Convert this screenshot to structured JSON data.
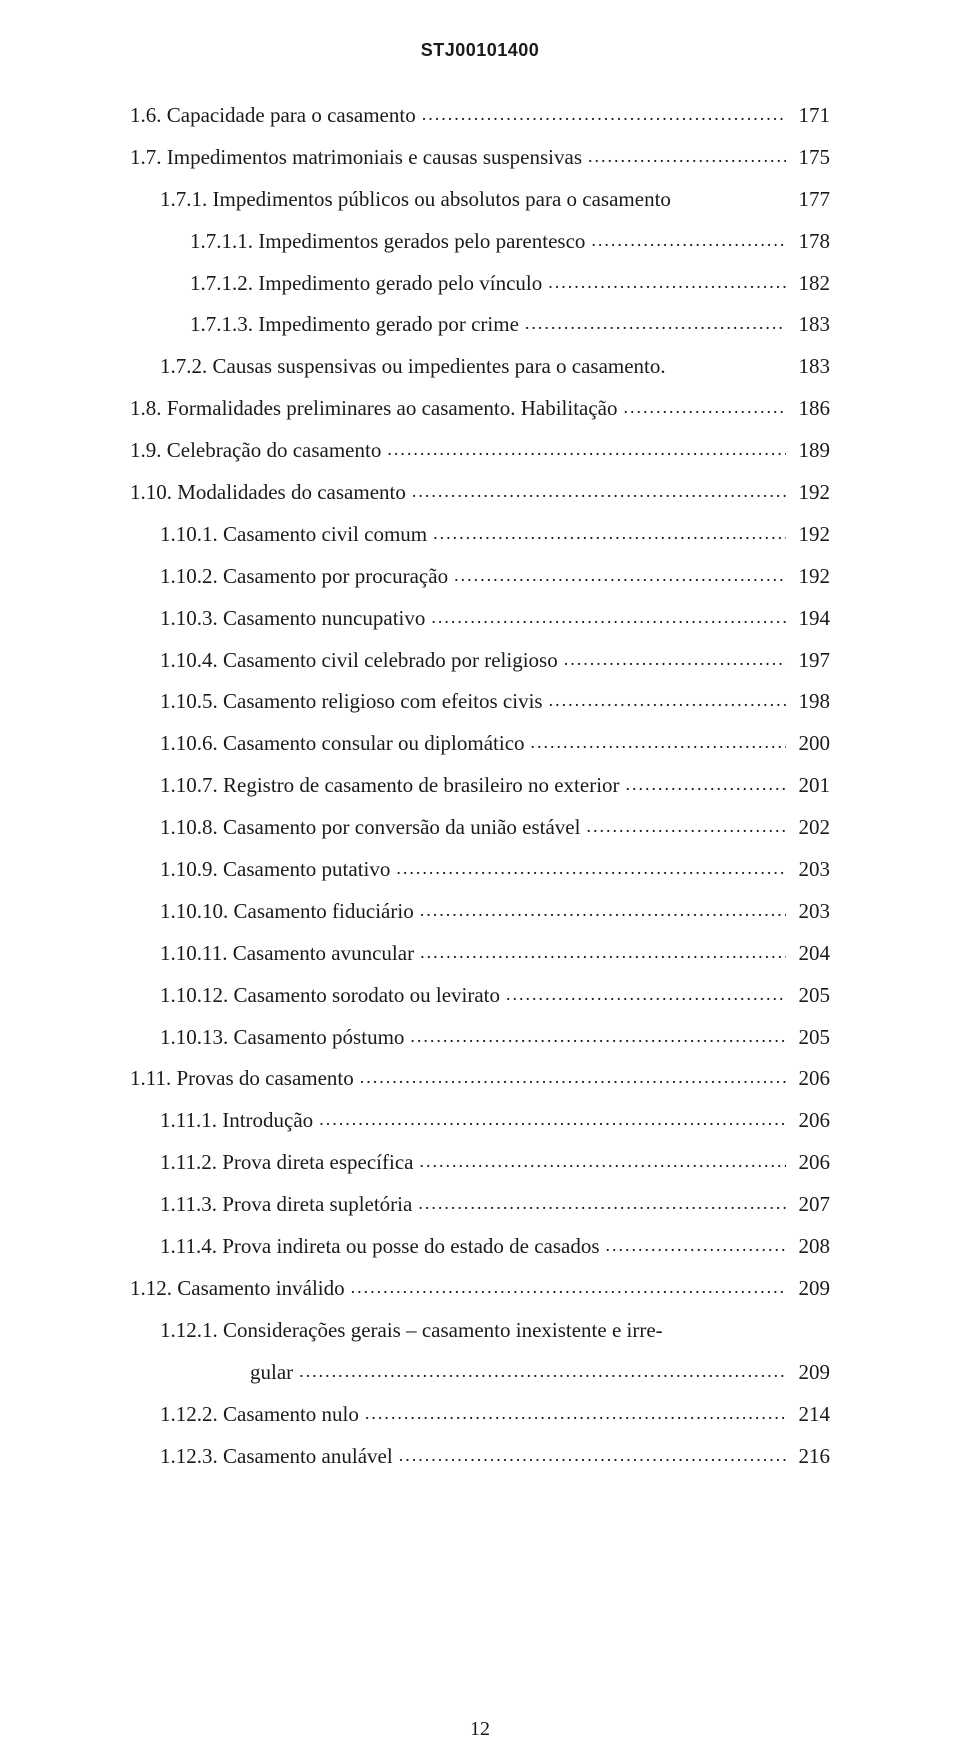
{
  "header_code": "STJ00101400",
  "footer_page": "12",
  "leader_dots": "........................................................................................................................",
  "toc": [
    {
      "indent": 0,
      "label": "1.6. Capacidade para o casamento",
      "page": "171",
      "leader": true
    },
    {
      "indent": 0,
      "label": "1.7. Impedimentos matrimoniais e causas suspensivas",
      "page": "175",
      "leader": true
    },
    {
      "indent": 1,
      "label": "1.7.1. Impedimentos públicos ou absolutos para o casamento",
      "page": "177",
      "leader": false
    },
    {
      "indent": 2,
      "label": "1.7.1.1. Impedimentos gerados pelo parentesco",
      "page": "178",
      "leader": true
    },
    {
      "indent": 2,
      "label": "1.7.1.2. Impedimento gerado pelo vínculo",
      "page": "182",
      "leader": true
    },
    {
      "indent": 2,
      "label": "1.7.1.3. Impedimento gerado por crime",
      "page": "183",
      "leader": true
    },
    {
      "indent": 1,
      "label": "1.7.2. Causas suspensivas ou impedientes para o casamento.",
      "page": "183",
      "leader": false
    },
    {
      "indent": 0,
      "label": "1.8. Formalidades preliminares ao casamento. Habilitação",
      "page": "186",
      "leader": true
    },
    {
      "indent": 0,
      "label": "1.9. Celebração do casamento",
      "page": "189",
      "leader": true
    },
    {
      "indent": 0,
      "label": "1.10. Modalidades do casamento",
      "page": "192",
      "leader": true
    },
    {
      "indent": 1,
      "label": "1.10.1. Casamento civil comum",
      "page": "192",
      "leader": true
    },
    {
      "indent": 1,
      "label": "1.10.2. Casamento por procuração",
      "page": "192",
      "leader": true
    },
    {
      "indent": 1,
      "label": "1.10.3. Casamento nuncupativo",
      "page": "194",
      "leader": true
    },
    {
      "indent": 1,
      "label": "1.10.4. Casamento civil celebrado por religioso",
      "page": "197",
      "leader": true
    },
    {
      "indent": 1,
      "label": "1.10.5. Casamento religioso com efeitos civis",
      "page": "198",
      "leader": true
    },
    {
      "indent": 1,
      "label": "1.10.6. Casamento consular ou diplomático",
      "page": "200",
      "leader": true
    },
    {
      "indent": 1,
      "label": "1.10.7. Registro de casamento de brasileiro no exterior",
      "page": "201",
      "leader": true
    },
    {
      "indent": 1,
      "label": "1.10.8. Casamento por conversão da união estável",
      "page": "202",
      "leader": true
    },
    {
      "indent": 1,
      "label": "1.10.9. Casamento putativo",
      "page": "203",
      "leader": true
    },
    {
      "indent": 1,
      "label": "1.10.10. Casamento fiduciário",
      "page": "203",
      "leader": true
    },
    {
      "indent": 1,
      "label": "1.10.11. Casamento avuncular",
      "page": "204",
      "leader": true
    },
    {
      "indent": 1,
      "label": "1.10.12. Casamento sorodato ou levirato",
      "page": "205",
      "leader": true
    },
    {
      "indent": 1,
      "label": "1.10.13. Casamento póstumo",
      "page": "205",
      "leader": true
    },
    {
      "indent": 0,
      "label": "1.11. Provas do casamento",
      "page": "206",
      "leader": true
    },
    {
      "indent": 1,
      "label": "1.11.1. Introdução",
      "page": "206",
      "leader": true
    },
    {
      "indent": 1,
      "label": "1.11.2. Prova direta específica",
      "page": "206",
      "leader": true
    },
    {
      "indent": 1,
      "label": "1.11.3. Prova direta supletória",
      "page": "207",
      "leader": true
    },
    {
      "indent": 1,
      "label": "1.11.4. Prova indireta ou posse do estado de casados",
      "page": "208",
      "leader": true
    },
    {
      "indent": 0,
      "label": "1.12. Casamento inválido",
      "page": "209",
      "leader": true
    },
    {
      "indent": 1,
      "label": "1.12.1. Considerações gerais – casamento inexistente e irre-",
      "page": "",
      "leader": false,
      "no_page": true
    },
    {
      "indent": 3,
      "label": "gular",
      "page": "209",
      "leader": true,
      "continuation": true
    },
    {
      "indent": 1,
      "label": "1.12.2. Casamento nulo",
      "page": "214",
      "leader": true
    },
    {
      "indent": 1,
      "label": "1.12.3. Casamento anulável",
      "page": "216",
      "leader": true
    }
  ]
}
